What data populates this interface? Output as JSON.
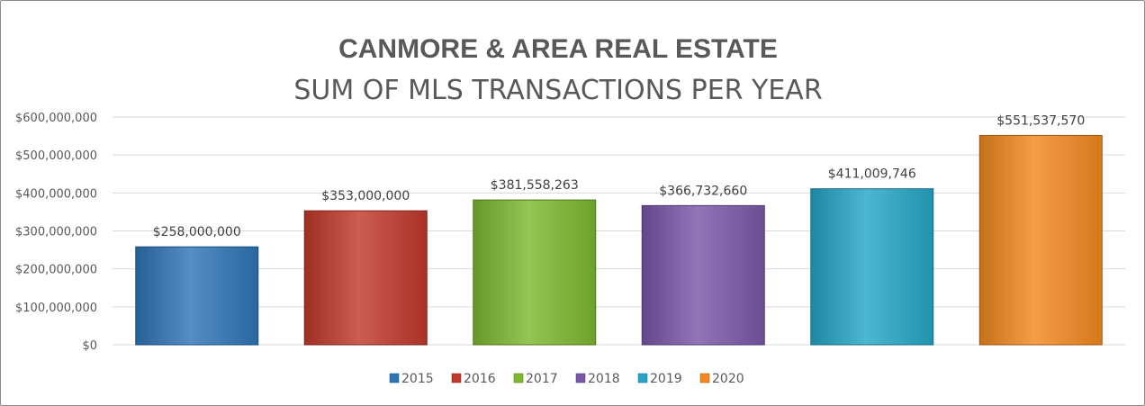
{
  "chart_data": {
    "type": "bar",
    "title": "CANMORE & AREA REAL ESTATE",
    "subtitle": "SUM OF MLS TRANSACTIONS PER YEAR",
    "categories": [
      "2015",
      "2016",
      "2017",
      "2018",
      "2019",
      "2020"
    ],
    "values": [
      258000000,
      353000000,
      381558263,
      366732660,
      411009746,
      551537570
    ],
    "data_labels": [
      "$258,000,000",
      "$353,000,000",
      "$381,558,263",
      "$366,732,660",
      "$411,009,746",
      "$551,537,570"
    ],
    "colors": [
      "#2e75b6",
      "#c0392b",
      "#7cb82f",
      "#7a57a8",
      "#25a6c6",
      "#f2881f"
    ],
    "ylim": [
      0,
      600000000
    ],
    "y_ticks": [
      0,
      100000000,
      200000000,
      300000000,
      400000000,
      500000000,
      600000000
    ],
    "y_tick_labels": [
      "$0",
      "$100,000,000",
      "$200,000,000",
      "$300,000,000",
      "$400,000,000",
      "$500,000,000",
      "$600,000,000"
    ],
    "legend": [
      "2015",
      "2016",
      "2017",
      "2018",
      "2019",
      "2020"
    ],
    "legend_position": "bottom",
    "grid": true,
    "xlabel": "",
    "ylabel": ""
  }
}
